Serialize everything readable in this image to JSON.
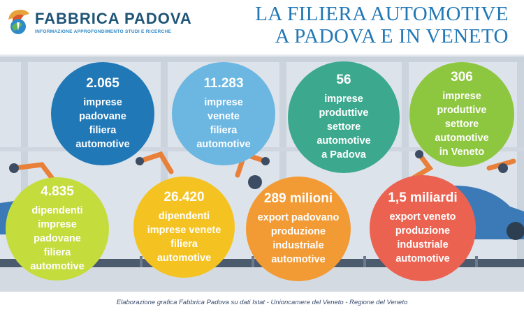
{
  "brand": {
    "name": "FABBRICA PADOVA",
    "tagline": "INFORMAZIONE APPROFONDIMENTO STUDI E RICERCHE"
  },
  "title": {
    "line1": "LA FILIERA AUTOMOTIVE",
    "line2": "A PADOVA E IN VENETO"
  },
  "stats": [
    {
      "value": "2.065",
      "label": "imprese\npadovane\nfiliera\nautomotive",
      "color": "#2178b7"
    },
    {
      "value": "11.283",
      "label": "imprese\nvenete\nfiliera\nautomotive",
      "color": "#6cb7e2"
    },
    {
      "value": "56",
      "label": "imprese\nproduttive\nsettore\nautomotive\na Padova",
      "color": "#3ca98f"
    },
    {
      "value": "306",
      "label": "imprese\nproduttive\nsettore\nautomotive\nin Veneto",
      "color": "#8dc63f"
    },
    {
      "value": "4.835",
      "label": "dipendenti\nimprese padovane\nfiliera\nautomotive",
      "color": "#c5dc3d"
    },
    {
      "value": "26.420",
      "label": "dipendenti\nimprese venete\nfiliera\nautomotive",
      "color": "#f4c322"
    },
    {
      "value": "289 milioni",
      "label": "export padovano\nproduzione\nindustriale\nautomotive",
      "color": "#f29a33"
    },
    {
      "value": "1,5 miliardi",
      "label": "export veneto\nproduzione\nindustriale\nautomotive",
      "color": "#ec6251"
    }
  ],
  "footer": "Elaborazione grafica Fabbrica Padova su dati Istat - Unioncamere del Veneto - Regione del Veneto",
  "colors": {
    "title": "#2177b5",
    "brand": "#1f5577",
    "background": "#dde3ea"
  }
}
